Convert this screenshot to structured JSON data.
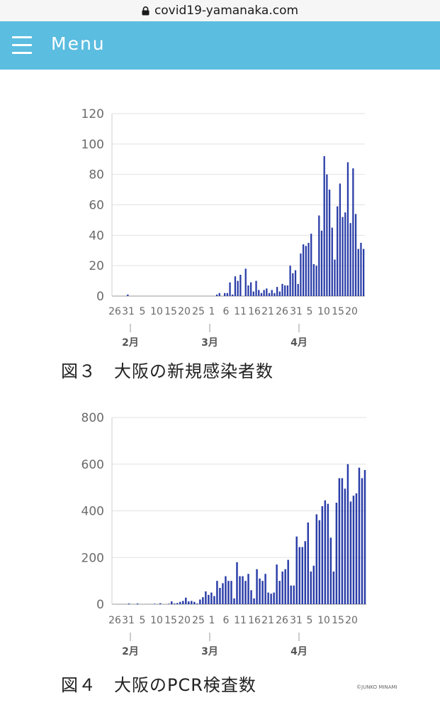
{
  "browser": {
    "url": "covid19-yamanaka.com"
  },
  "header": {
    "menu_label": "Menu"
  },
  "chart_data": [
    {
      "type": "bar",
      "title": "",
      "ylim": [
        0,
        120
      ],
      "yticks": [
        0,
        20,
        40,
        60,
        80,
        100,
        120
      ],
      "x_tick_labels": [
        "26",
        "31",
        "5",
        "10",
        "15",
        "20",
        "25",
        "1",
        "6",
        "11",
        "16",
        "21",
        "26",
        "31",
        "5",
        "10",
        "15",
        "20"
      ],
      "month_labels": [
        "2月",
        "3月",
        "4月"
      ],
      "bar_color": "#2b3ea8",
      "values": [
        0,
        0,
        0,
        0,
        0,
        1,
        0,
        0,
        0,
        0,
        0,
        0,
        0,
        0,
        0,
        0,
        0,
        0,
        0,
        0,
        0,
        0,
        0,
        0,
        0,
        0,
        0,
        0,
        0,
        0,
        0,
        0,
        0,
        0,
        0,
        0,
        0,
        0,
        0,
        1,
        2,
        0,
        2,
        2,
        9,
        1,
        13,
        10,
        14,
        0,
        18,
        7,
        9,
        3,
        10,
        4,
        2,
        4,
        5,
        2,
        4,
        2,
        6,
        3,
        8,
        7,
        7,
        20,
        15,
        17,
        8,
        28,
        34,
        33,
        35,
        41,
        21,
        20,
        53,
        43,
        92,
        80,
        70,
        45,
        24,
        59,
        74,
        52,
        55,
        88,
        48,
        84,
        54,
        31,
        35,
        31
      ]
    },
    {
      "type": "bar",
      "title": "",
      "ylim": [
        0,
        800
      ],
      "yticks": [
        0,
        200,
        400,
        600,
        800
      ],
      "x_tick_labels": [
        "26",
        "31",
        "5",
        "10",
        "15",
        "20",
        "25",
        "1",
        "6",
        "11",
        "16",
        "21",
        "26",
        "31",
        "5",
        "10",
        "15",
        "20"
      ],
      "month_labels": [
        "2月",
        "3月",
        "4月"
      ],
      "bar_color": "#2b3ea8",
      "values": [
        0,
        0,
        0,
        0,
        0,
        3,
        0,
        0,
        3,
        0,
        0,
        0,
        0,
        0,
        2,
        0,
        4,
        0,
        0,
        2,
        12,
        3,
        5,
        10,
        14,
        28,
        12,
        14,
        10,
        3,
        20,
        30,
        55,
        40,
        50,
        35,
        100,
        70,
        90,
        120,
        100,
        100,
        25,
        180,
        120,
        120,
        100,
        130,
        60,
        25,
        150,
        110,
        100,
        130,
        50,
        45,
        50,
        170,
        100,
        140,
        150,
        190,
        80,
        80,
        290,
        245,
        245,
        270,
        350,
        140,
        165,
        385,
        360,
        420,
        445,
        430,
        285,
        140,
        435,
        540,
        540,
        495,
        600,
        440,
        465,
        475,
        585,
        540,
        575
      ]
    }
  ],
  "captions": [
    "図３　大阪の新規感染者数",
    "図４　大阪のPCR検査数"
  ],
  "copyright": "©JUNKO MINAMI"
}
